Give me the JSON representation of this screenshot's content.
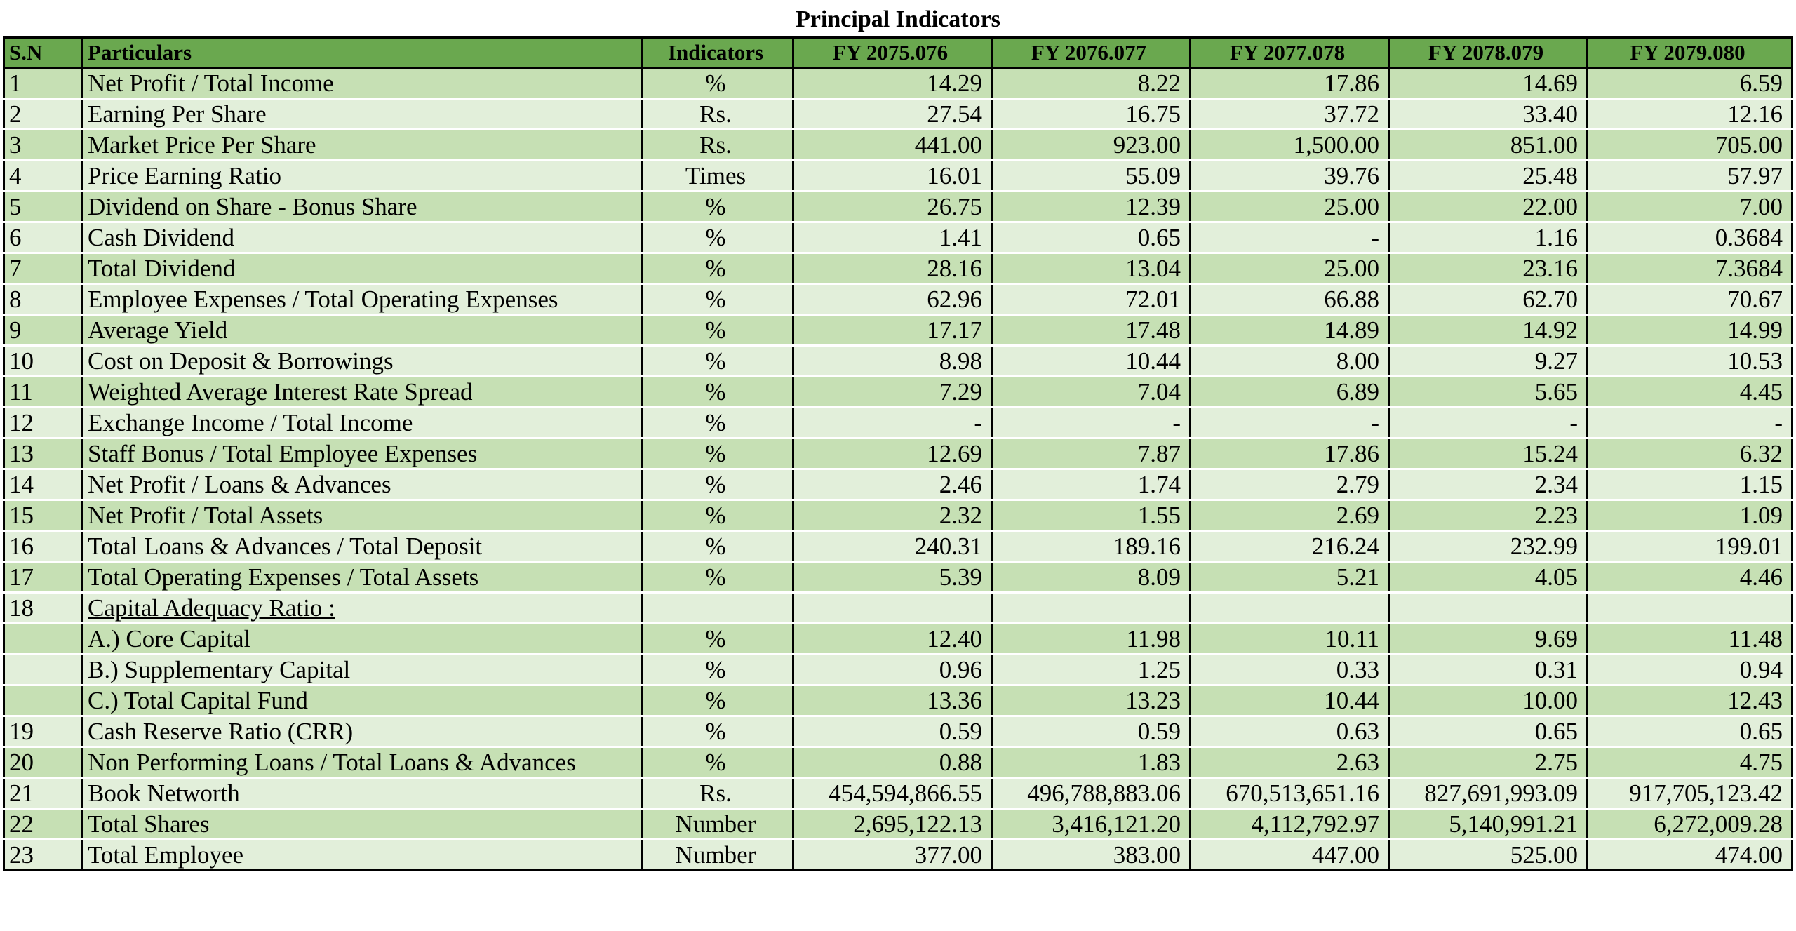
{
  "title": "Principal Indicators",
  "headers": {
    "sn": "S.N",
    "particulars": "Particulars",
    "indicators": "Indicators",
    "fy": [
      "FY 2075.076",
      "FY 2076.077",
      "FY 2077.078",
      "FY 2078.079",
      "FY 2079.080"
    ]
  },
  "rows": [
    {
      "sn": "1",
      "particulars": "Net Profit / Total Income",
      "indicator": "%",
      "values": [
        "14.29",
        "8.22",
        "17.86",
        "14.69",
        "6.59"
      ]
    },
    {
      "sn": "2",
      "particulars": "Earning Per Share",
      "indicator": "Rs.",
      "values": [
        "27.54",
        "16.75",
        "37.72",
        "33.40",
        "12.16"
      ]
    },
    {
      "sn": "3",
      "particulars": "Market Price Per Share",
      "indicator": "Rs.",
      "values": [
        "441.00",
        "923.00",
        "1,500.00",
        "851.00",
        "705.00"
      ]
    },
    {
      "sn": "4",
      "particulars": "Price Earning Ratio",
      "indicator": "Times",
      "values": [
        "16.01",
        "55.09",
        "39.76",
        "25.48",
        "57.97"
      ]
    },
    {
      "sn": "5",
      "particulars": "Dividend on Share - Bonus Share",
      "indicator": "%",
      "values": [
        "26.75",
        "12.39",
        "25.00",
        "22.00",
        "7.00"
      ]
    },
    {
      "sn": "6",
      "particulars": "Cash Dividend",
      "indicator": "%",
      "values": [
        "1.41",
        "0.65",
        "-",
        "1.16",
        "0.3684"
      ]
    },
    {
      "sn": "7",
      "particulars": "Total Dividend",
      "indicator": "%",
      "values": [
        "28.16",
        "13.04",
        "25.00",
        "23.16",
        "7.3684"
      ]
    },
    {
      "sn": "8",
      "particulars": "Employee Expenses / Total Operating Expenses",
      "indicator": "%",
      "values": [
        "62.96",
        "72.01",
        "66.88",
        "62.70",
        "70.67"
      ]
    },
    {
      "sn": "9",
      "particulars": "Average Yield",
      "indicator": "%",
      "values": [
        "17.17",
        "17.48",
        "14.89",
        "14.92",
        "14.99"
      ]
    },
    {
      "sn": "10",
      "particulars": "Cost on Deposit & Borrowings",
      "indicator": "%",
      "values": [
        "8.98",
        "10.44",
        "8.00",
        "9.27",
        "10.53"
      ]
    },
    {
      "sn": "11",
      "particulars": "Weighted Average Interest Rate Spread",
      "indicator": "%",
      "values": [
        "7.29",
        "7.04",
        "6.89",
        "5.65",
        "4.45"
      ]
    },
    {
      "sn": "12",
      "particulars": "Exchange Income / Total Income",
      "indicator": "%",
      "values": [
        "-",
        "-",
        "-",
        "-",
        "-"
      ]
    },
    {
      "sn": "13",
      "particulars": "Staff Bonus / Total Employee Expenses",
      "indicator": "%",
      "values": [
        "12.69",
        "7.87",
        "17.86",
        "15.24",
        "6.32"
      ]
    },
    {
      "sn": "14",
      "particulars": "Net Profit / Loans & Advances",
      "indicator": "%",
      "values": [
        "2.46",
        "1.74",
        "2.79",
        "2.34",
        "1.15"
      ]
    },
    {
      "sn": "15",
      "particulars": "Net Profit / Total Assets",
      "indicator": "%",
      "values": [
        "2.32",
        "1.55",
        "2.69",
        "2.23",
        "1.09"
      ]
    },
    {
      "sn": "16",
      "particulars": "Total Loans & Advances / Total Deposit",
      "indicator": "%",
      "values": [
        "240.31",
        "189.16",
        "216.24",
        "232.99",
        "199.01"
      ]
    },
    {
      "sn": "17",
      "particulars": "Total Operating Expenses / Total Assets",
      "indicator": "%",
      "values": [
        "5.39",
        "8.09",
        "5.21",
        "4.05",
        "4.46"
      ]
    },
    {
      "sn": "18",
      "particulars": "Capital Adequacy Ratio :",
      "indicator": "",
      "values": [
        "",
        "",
        "",
        "",
        ""
      ],
      "underline": true
    },
    {
      "sn": "",
      "particulars": "A.) Core Capital",
      "indicator": "%",
      "values": [
        "12.40",
        "11.98",
        "10.11",
        "9.69",
        "11.48"
      ]
    },
    {
      "sn": "",
      "particulars": "B.) Supplementary Capital",
      "indicator": "%",
      "values": [
        "0.96",
        "1.25",
        "0.33",
        "0.31",
        "0.94"
      ]
    },
    {
      "sn": "",
      "particulars": "C.) Total Capital Fund",
      "indicator": "%",
      "values": [
        "13.36",
        "13.23",
        "10.44",
        "10.00",
        "12.43"
      ]
    },
    {
      "sn": "19",
      "particulars": "Cash Reserve Ratio (CRR)",
      "indicator": "%",
      "values": [
        "0.59",
        "0.59",
        "0.63",
        "0.65",
        "0.65"
      ]
    },
    {
      "sn": "20",
      "particulars": "Non Performing Loans / Total Loans & Advances",
      "indicator": "%",
      "values": [
        "0.88",
        "1.83",
        "2.63",
        "2.75",
        "4.75"
      ]
    },
    {
      "sn": "21",
      "particulars": "Book Networth",
      "indicator": "Rs.",
      "values": [
        "454,594,866.55",
        "496,788,883.06",
        "670,513,651.16",
        "827,691,993.09",
        "917,705,123.42"
      ]
    },
    {
      "sn": "22",
      "particulars": "Total Shares",
      "indicator": "Number",
      "values": [
        "2,695,122.13",
        "3,416,121.20",
        "4,112,792.97",
        "5,140,991.21",
        "6,272,009.28"
      ]
    },
    {
      "sn": "23",
      "particulars": "Total Employee",
      "indicator": "Number",
      "values": [
        "377.00",
        "383.00",
        "447.00",
        "525.00",
        "474.00"
      ]
    }
  ],
  "colors": {
    "header": "#6aa84f",
    "row_dark": "#c6e0b4",
    "row_light": "#e2efda",
    "border": "#000000"
  }
}
